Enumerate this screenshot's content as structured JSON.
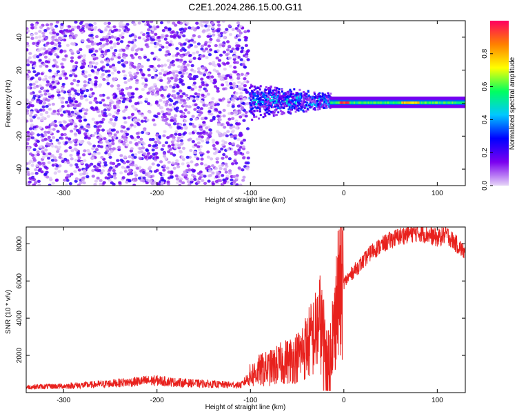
{
  "title": "C2E1.2024.286.15.00.G11",
  "chart_data": [
    {
      "type": "heatmap",
      "xlabel": "Height of straight line (km)",
      "ylabel": "Frequency (Hz)",
      "xlim": [
        -340,
        130
      ],
      "ylim": [
        -50,
        50
      ],
      "xticks": [
        -300,
        -200,
        -100,
        0,
        100
      ],
      "yticks": [
        -40,
        -20,
        0,
        20,
        40
      ],
      "colorbar": {
        "label": "Normalized spectral amplitude",
        "range": [
          0,
          1
        ],
        "ticks": [
          0.0,
          0.2,
          0.4,
          0.6,
          0.8
        ],
        "colors": [
          "#e6d5f7",
          "#7b00f0",
          "#0000ff",
          "#00c8ff",
          "#00ff60",
          "#ffff00",
          "#ff8000",
          "#ff0060"
        ]
      },
      "regions": [
        {
          "x": [
            -340,
            -102
          ],
          "freq": [
            -50,
            50
          ],
          "amplitude": "noise (0.0-0.25)"
        },
        {
          "x": [
            -102,
            -15
          ],
          "freq": [
            -12,
            12
          ],
          "amplitude": "0.1-0.5",
          "center_freq": 2
        },
        {
          "x": [
            -15,
            130
          ],
          "freq": [
            -3,
            4
          ],
          "amplitude": "0.4-0.9",
          "center_freq": 0
        }
      ]
    },
    {
      "type": "line",
      "xlabel": "Height of straight line (km)",
      "ylabel": "SNR (10 * v/v)",
      "xlim": [
        -340,
        130
      ],
      "ylim": [
        0,
        8900
      ],
      "xticks": [
        -300,
        -200,
        -100,
        0,
        100
      ],
      "yticks": [
        2000,
        4000,
        6000,
        8000
      ],
      "color": "#e8211d",
      "series": [
        {
          "x": [
            -340,
            -300,
            -260,
            -220,
            -200,
            -180,
            -140,
            -110,
            -100,
            -90,
            -80,
            -70,
            -60,
            -50,
            -40,
            -30,
            -25,
            -20,
            -15,
            -10,
            -5,
            0,
            10,
            20,
            30,
            40,
            50,
            60,
            70,
            80,
            90,
            100,
            110,
            120,
            130
          ],
          "values": [
            300,
            350,
            450,
            600,
            650,
            550,
            450,
            400,
            900,
            1200,
            1300,
            1500,
            1700,
            1900,
            2500,
            3200,
            3800,
            2500,
            2600,
            3800,
            5400,
            5900,
            6500,
            7000,
            7600,
            7900,
            8200,
            8400,
            8550,
            8600,
            8500,
            8300,
            8500,
            8000,
            7500
          ]
        }
      ]
    }
  ]
}
